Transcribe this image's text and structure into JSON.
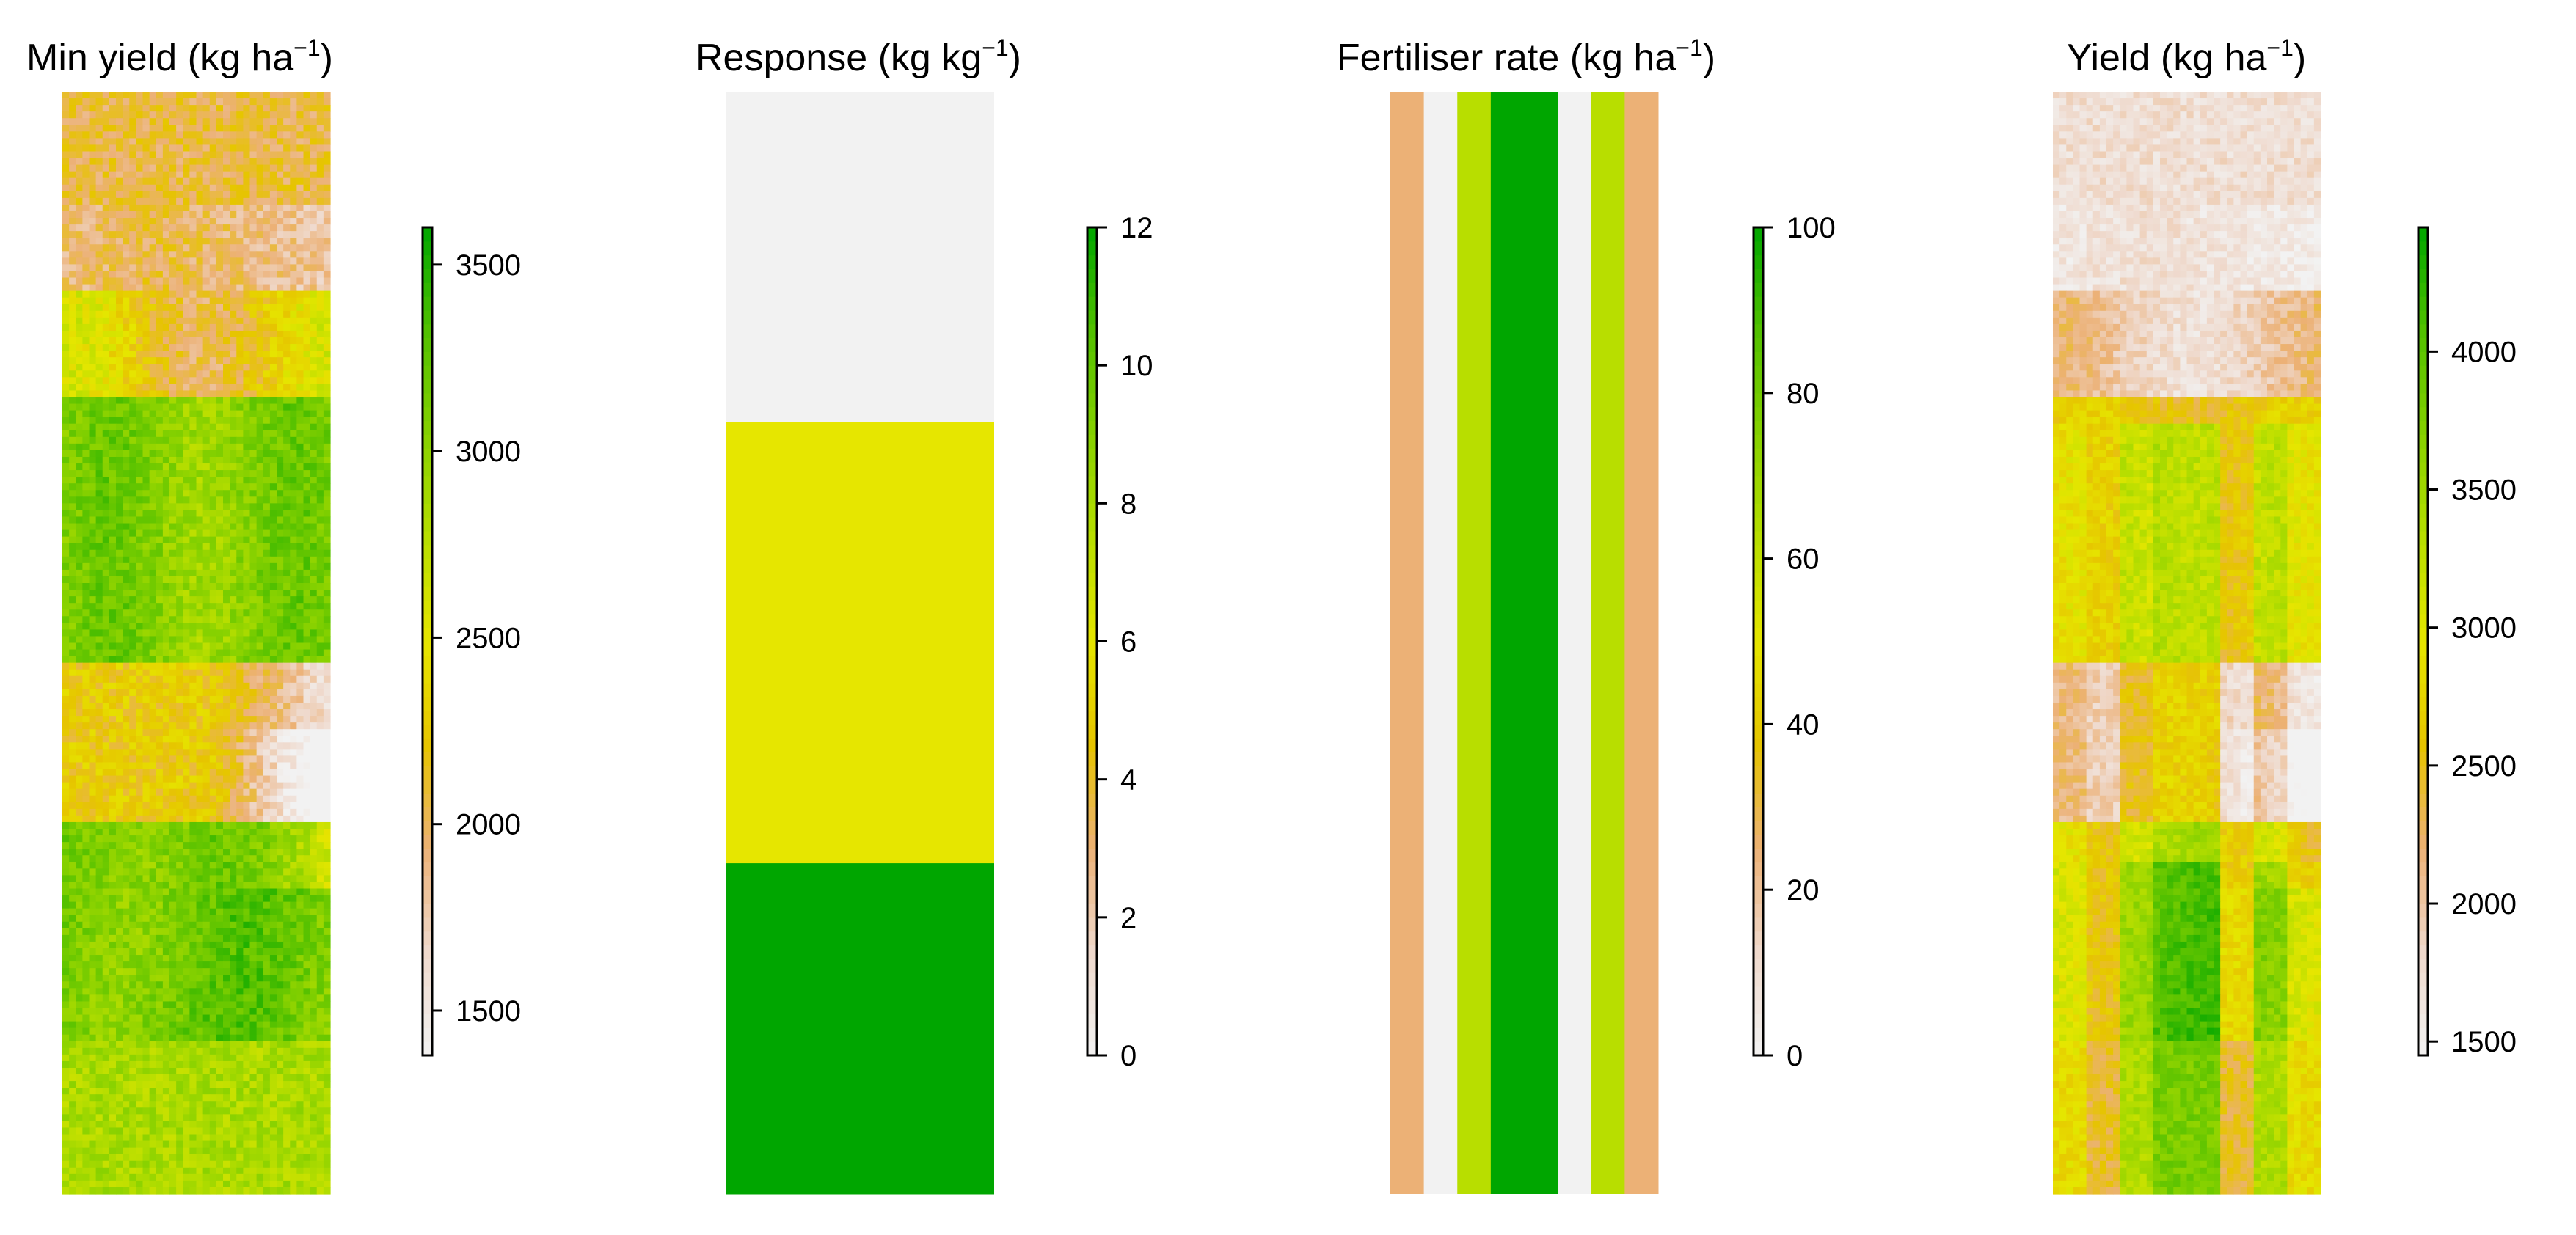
{
  "palette": [
    "#F2F2F2",
    "#EFD9CC",
    "#ECB176",
    "#E6C400",
    "#E6E600",
    "#B8DE00",
    "#87D100",
    "#52C000",
    "#00A600"
  ],
  "chart_data": [
    {
      "type": "heatmap",
      "title": "Min yield (kg ha",
      "title_sup": "−1",
      "title_close": ")",
      "zlim": [
        1380,
        3600
      ],
      "colorbar_ticks": [
        1500,
        2000,
        2500,
        3000,
        3500
      ],
      "description": "Raster of minimum yield; green (3000-3600) zones at rows 30-45% and 68-85%, pink low-yield (1400-1800) area near top and right side middle."
    },
    {
      "type": "heatmap",
      "title": "Response (kg kg",
      "title_sup": "−1",
      "title_close": ")",
      "zlim": [
        0,
        12
      ],
      "colorbar_ticks": [
        0,
        2,
        4,
        6,
        8,
        10,
        12
      ],
      "zones": [
        {
          "from_top": 0.0,
          "to_top": 0.3,
          "value": 0,
          "color": "#F2F2F2"
        },
        {
          "from_top": 0.3,
          "to_top": 0.7,
          "value": 7,
          "color": "#E6E600"
        },
        {
          "from_top": 0.7,
          "to_top": 1.0,
          "value": 12,
          "color": "#00A600"
        }
      ]
    },
    {
      "type": "heatmap",
      "title": "Fertiliser rate (kg ha",
      "title_sup": "−1",
      "title_close": ")",
      "zlim": [
        0,
        100
      ],
      "colorbar_ticks": [
        0,
        20,
        40,
        60,
        80,
        100
      ],
      "strips": [
        {
          "value": 30,
          "color": "#ECB176"
        },
        {
          "value": 0,
          "color": "#F2F2F2"
        },
        {
          "value": 70,
          "color": "#B8DE00"
        },
        {
          "value": 100,
          "color": "#00A600"
        },
        {
          "value": 100,
          "color": "#00A600"
        },
        {
          "value": 0,
          "color": "#F2F2F2"
        },
        {
          "value": 70,
          "color": "#B8DE00"
        },
        {
          "value": 30,
          "color": "#ECB176"
        }
      ]
    },
    {
      "type": "heatmap",
      "title": "Yield (kg ha",
      "title_sup": "−1",
      "title_close": ")",
      "zlim": [
        1450,
        4450
      ],
      "colorbar_ticks": [
        1500,
        2000,
        2500,
        3000,
        3500,
        4000
      ],
      "description": "Raster of yield; pink low values in top ~30%, vertical strips of higher yield following fertiliser strips in lower part."
    }
  ]
}
